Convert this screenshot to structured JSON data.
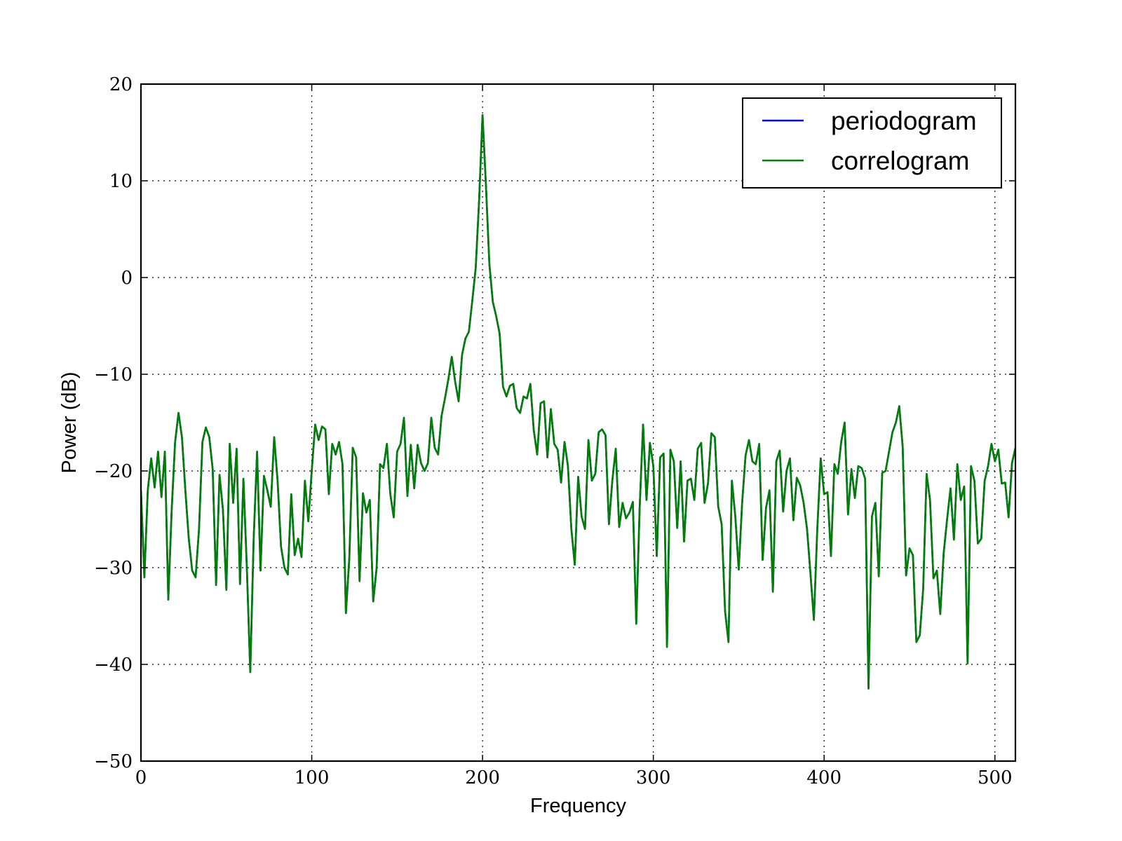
{
  "chart_data": {
    "type": "line",
    "title": "",
    "xlabel": "Frequency",
    "ylabel": "Power (dB)",
    "xlim": [
      0,
      512
    ],
    "ylim": [
      -50,
      20
    ],
    "xticks": [
      0,
      100,
      200,
      300,
      400,
      500
    ],
    "yticks": [
      -50,
      -40,
      -30,
      -20,
      -10,
      0,
      10,
      20
    ],
    "xtick_labels": [
      "0",
      "100",
      "200",
      "300",
      "400",
      "500"
    ],
    "ytick_labels": [
      "−50",
      "−40",
      "−30",
      "−20",
      "−10",
      "0",
      "10",
      "20"
    ],
    "grid": true,
    "legend": {
      "placement": "top-right"
    },
    "series": [
      {
        "name": "periodogram",
        "color": "#0000ff",
        "x": [
          0,
          2,
          4,
          6,
          8,
          10,
          12,
          14,
          16,
          18,
          20,
          22,
          24,
          26,
          28,
          30,
          32,
          34,
          36,
          38,
          40,
          42,
          44,
          46,
          48,
          50,
          52,
          54,
          56,
          58,
          60,
          62,
          64,
          66,
          68,
          70,
          72,
          74,
          76,
          78,
          80,
          82,
          84,
          86,
          88,
          90,
          92,
          94,
          96,
          98,
          100,
          102,
          104,
          106,
          108,
          110,
          112,
          114,
          116,
          118,
          120,
          122,
          124,
          126,
          128,
          130,
          132,
          134,
          136,
          138,
          140,
          142,
          144,
          146,
          148,
          150,
          152,
          154,
          156,
          158,
          160,
          162,
          164,
          166,
          168,
          170,
          172,
          174,
          176,
          178,
          180,
          182,
          184,
          186,
          188,
          190,
          192,
          194,
          196,
          198,
          200,
          202,
          204,
          206,
          208,
          210,
          212,
          214,
          216,
          218,
          220,
          222,
          224,
          226,
          228,
          230,
          232,
          234,
          236,
          238,
          240,
          242,
          244,
          246,
          248,
          250,
          252,
          254,
          256,
          258,
          260,
          262,
          264,
          266,
          268,
          270,
          272,
          274,
          276,
          278,
          280,
          282,
          284,
          286,
          288,
          290,
          292,
          294,
          296,
          298,
          300,
          302,
          304,
          306,
          308,
          310,
          312,
          314,
          316,
          318,
          320,
          322,
          324,
          326,
          328,
          330,
          332,
          334,
          336,
          338,
          340,
          342,
          344,
          346,
          348,
          350,
          352,
          354,
          356,
          358,
          360,
          362,
          364,
          366,
          368,
          370,
          372,
          374,
          376,
          378,
          380,
          382,
          384,
          386,
          388,
          390,
          392,
          394,
          396,
          398,
          400,
          402,
          404,
          406,
          408,
          410,
          412,
          414,
          416,
          418,
          420,
          422,
          424,
          426,
          428,
          430,
          432,
          434,
          436,
          438,
          440,
          442,
          444,
          446,
          448,
          450,
          452,
          454,
          456,
          458,
          460,
          462,
          464,
          466,
          468,
          470,
          472,
          474,
          476,
          478,
          480,
          482,
          484,
          486,
          488,
          490,
          492,
          494,
          496,
          498,
          500,
          502,
          504,
          506,
          508,
          510,
          512
        ],
        "y": [
          -22.0,
          -31.0,
          -22.0,
          -18.7,
          -21.7,
          -18.0,
          -22.7,
          -18.0,
          -33.3,
          -24.0,
          -17.0,
          -14.0,
          -16.5,
          -22.0,
          -27.0,
          -30.3,
          -31.0,
          -26.0,
          -17.0,
          -15.5,
          -16.5,
          -19.8,
          -31.8,
          -20.4,
          -24.0,
          -32.3,
          -17.2,
          -23.3,
          -17.7,
          -31.7,
          -20.8,
          -30.0,
          -40.8,
          -27.0,
          -18.0,
          -30.3,
          -20.5,
          -22.0,
          -23.7,
          -16.5,
          -21.0,
          -27.8,
          -30.0,
          -30.7,
          -22.4,
          -28.7,
          -27.0,
          -28.9,
          -21.0,
          -25.2,
          -20.0,
          -15.2,
          -16.8,
          -15.4,
          -15.7,
          -22.4,
          -17.2,
          -18.3,
          -17.0,
          -19.3,
          -34.7,
          -29.0,
          -17.6,
          -18.6,
          -31.4,
          -22.3,
          -24.3,
          -23.0,
          -33.5,
          -30.0,
          -19.3,
          -19.7,
          -17.2,
          -22.4,
          -24.8,
          -18.0,
          -17.2,
          -14.5,
          -22.6,
          -17.3,
          -21.8,
          -17.3,
          -19.2,
          -20.0,
          -19.2,
          -14.5,
          -17.6,
          -18.3,
          -14.3,
          -12.5,
          -10.5,
          -8.2,
          -10.8,
          -12.8,
          -8.0,
          -6.3,
          -5.6,
          -2.4,
          1.0,
          8.0,
          16.8,
          9.5,
          1.4,
          -2.5,
          -4.0,
          -5.8,
          -11.3,
          -12.3,
          -11.2,
          -11.0,
          -13.5,
          -14.0,
          -12.3,
          -12.5,
          -11.0,
          -15.8,
          -18.3,
          -13.0,
          -12.8,
          -18.6,
          -13.6,
          -17.2,
          -17.8,
          -21.2,
          -17.0,
          -19.5,
          -26.0,
          -29.7,
          -20.6,
          -24.7,
          -26.0,
          -16.8,
          -21.0,
          -20.3,
          -16.0,
          -15.7,
          -16.3,
          -25.5,
          -21.0,
          -17.7,
          -25.8,
          -23.3,
          -24.9,
          -24.3,
          -23.2,
          -35.8,
          -23.8,
          -15.2,
          -23.0,
          -17.1,
          -19.5,
          -28.8,
          -18.6,
          -18.2,
          -38.2,
          -17.8,
          -19.0,
          -25.9,
          -19.0,
          -27.3,
          -21.0,
          -20.8,
          -23.0,
          -17.7,
          -17.1,
          -23.3,
          -21.3,
          -16.1,
          -16.5,
          -23.7,
          -25.5,
          -34.5,
          -37.7,
          -21.0,
          -24.7,
          -30.2,
          -23.3,
          -18.4,
          -16.8,
          -19.0,
          -19.3,
          -17.2,
          -29.2,
          -23.8,
          -22.0,
          -32.5,
          -19.0,
          -17.9,
          -24.2,
          -20.0,
          -18.7,
          -25.1,
          -20.7,
          -21.5,
          -23.3,
          -26.0,
          -30.6,
          -35.4,
          -26.0,
          -18.7,
          -22.4,
          -22.2,
          -28.8,
          -19.3,
          -20.3,
          -17.0,
          -15.0,
          -24.5,
          -19.8,
          -22.8,
          -19.5,
          -19.7,
          -20.8,
          -42.5,
          -24.7,
          -23.3,
          -30.9,
          -20.2,
          -20.0,
          -18.0,
          -16.0,
          -15.0,
          -13.3,
          -17.5,
          -30.8,
          -28.0,
          -28.7,
          -37.7,
          -37.0,
          -32.2,
          -20.3,
          -23.0,
          -31.1,
          -30.3,
          -34.8,
          -28.5,
          -25.0,
          -21.8,
          -27.1,
          -19.3,
          -23.0,
          -21.6,
          -39.9,
          -19.5,
          -21.0,
          -27.5,
          -27.0,
          -21.0,
          -19.5,
          -17.2,
          -19.0,
          -17.8,
          -21.3,
          -21.2,
          -24.8,
          -19.2,
          -17.6
        ]
      },
      {
        "name": "correlogram",
        "color": "#007f00",
        "x": [
          0,
          2,
          4,
          6,
          8,
          10,
          12,
          14,
          16,
          18,
          20,
          22,
          24,
          26,
          28,
          30,
          32,
          34,
          36,
          38,
          40,
          42,
          44,
          46,
          48,
          50,
          52,
          54,
          56,
          58,
          60,
          62,
          64,
          66,
          68,
          70,
          72,
          74,
          76,
          78,
          80,
          82,
          84,
          86,
          88,
          90,
          92,
          94,
          96,
          98,
          100,
          102,
          104,
          106,
          108,
          110,
          112,
          114,
          116,
          118,
          120,
          122,
          124,
          126,
          128,
          130,
          132,
          134,
          136,
          138,
          140,
          142,
          144,
          146,
          148,
          150,
          152,
          154,
          156,
          158,
          160,
          162,
          164,
          166,
          168,
          170,
          172,
          174,
          176,
          178,
          180,
          182,
          184,
          186,
          188,
          190,
          192,
          194,
          196,
          198,
          200,
          202,
          204,
          206,
          208,
          210,
          212,
          214,
          216,
          218,
          220,
          222,
          224,
          226,
          228,
          230,
          232,
          234,
          236,
          238,
          240,
          242,
          244,
          246,
          248,
          250,
          252,
          254,
          256,
          258,
          260,
          262,
          264,
          266,
          268,
          270,
          272,
          274,
          276,
          278,
          280,
          282,
          284,
          286,
          288,
          290,
          292,
          294,
          296,
          298,
          300,
          302,
          304,
          306,
          308,
          310,
          312,
          314,
          316,
          318,
          320,
          322,
          324,
          326,
          328,
          330,
          332,
          334,
          336,
          338,
          340,
          342,
          344,
          346,
          348,
          350,
          352,
          354,
          356,
          358,
          360,
          362,
          364,
          366,
          368,
          370,
          372,
          374,
          376,
          378,
          380,
          382,
          384,
          386,
          388,
          390,
          392,
          394,
          396,
          398,
          400,
          402,
          404,
          406,
          408,
          410,
          412,
          414,
          416,
          418,
          420,
          422,
          424,
          426,
          428,
          430,
          432,
          434,
          436,
          438,
          440,
          442,
          444,
          446,
          448,
          450,
          452,
          454,
          456,
          458,
          460,
          462,
          464,
          466,
          468,
          470,
          472,
          474,
          476,
          478,
          480,
          482,
          484,
          486,
          488,
          490,
          492,
          494,
          496,
          498,
          500,
          502,
          504,
          506,
          508,
          510,
          512
        ],
        "y": [
          -22.0,
          -31.0,
          -22.0,
          -18.7,
          -21.7,
          -18.0,
          -22.7,
          -18.0,
          -33.3,
          -24.0,
          -17.0,
          -14.0,
          -16.5,
          -22.0,
          -27.0,
          -30.3,
          -31.0,
          -26.0,
          -17.0,
          -15.5,
          -16.5,
          -19.8,
          -31.8,
          -20.4,
          -24.0,
          -32.3,
          -17.2,
          -23.3,
          -17.7,
          -31.7,
          -20.8,
          -30.0,
          -40.8,
          -27.0,
          -18.0,
          -30.3,
          -20.5,
          -22.0,
          -23.7,
          -16.5,
          -21.0,
          -27.8,
          -30.0,
          -30.7,
          -22.4,
          -28.7,
          -27.0,
          -28.9,
          -21.0,
          -25.2,
          -20.0,
          -15.2,
          -16.8,
          -15.4,
          -15.7,
          -22.4,
          -17.2,
          -18.3,
          -17.0,
          -19.3,
          -34.7,
          -29.0,
          -17.6,
          -18.6,
          -31.4,
          -22.3,
          -24.3,
          -23.0,
          -33.5,
          -30.0,
          -19.3,
          -19.7,
          -17.2,
          -22.4,
          -24.8,
          -18.0,
          -17.2,
          -14.5,
          -22.6,
          -17.3,
          -21.8,
          -17.3,
          -19.2,
          -20.0,
          -19.2,
          -14.5,
          -17.6,
          -18.3,
          -14.3,
          -12.5,
          -10.5,
          -8.2,
          -10.8,
          -12.8,
          -8.0,
          -6.3,
          -5.6,
          -2.4,
          1.0,
          8.0,
          16.8,
          9.5,
          1.4,
          -2.5,
          -4.0,
          -5.8,
          -11.3,
          -12.3,
          -11.2,
          -11.0,
          -13.5,
          -14.0,
          -12.3,
          -12.5,
          -11.0,
          -15.8,
          -18.3,
          -13.0,
          -12.8,
          -18.6,
          -13.6,
          -17.2,
          -17.8,
          -21.2,
          -17.0,
          -19.5,
          -26.0,
          -29.7,
          -20.6,
          -24.7,
          -26.0,
          -16.8,
          -21.0,
          -20.3,
          -16.0,
          -15.7,
          -16.3,
          -25.5,
          -21.0,
          -17.7,
          -25.8,
          -23.3,
          -24.9,
          -24.3,
          -23.2,
          -35.8,
          -23.8,
          -15.2,
          -23.0,
          -17.1,
          -19.5,
          -28.8,
          -18.6,
          -18.2,
          -38.2,
          -17.8,
          -19.0,
          -25.9,
          -19.0,
          -27.3,
          -21.0,
          -20.8,
          -23.0,
          -17.7,
          -17.1,
          -23.3,
          -21.3,
          -16.1,
          -16.5,
          -23.7,
          -25.5,
          -34.5,
          -37.7,
          -21.0,
          -24.7,
          -30.2,
          -23.3,
          -18.4,
          -16.8,
          -19.0,
          -19.3,
          -17.2,
          -29.2,
          -23.8,
          -22.0,
          -32.5,
          -19.0,
          -17.9,
          -24.2,
          -20.0,
          -18.7,
          -25.1,
          -20.7,
          -21.5,
          -23.3,
          -26.0,
          -30.6,
          -35.4,
          -26.0,
          -18.7,
          -22.4,
          -22.2,
          -28.8,
          -19.3,
          -20.3,
          -17.0,
          -15.0,
          -24.5,
          -19.8,
          -22.8,
          -19.5,
          -19.7,
          -20.8,
          -42.5,
          -24.7,
          -23.3,
          -30.9,
          -20.2,
          -20.0,
          -18.0,
          -16.0,
          -15.0,
          -13.3,
          -17.5,
          -30.8,
          -28.0,
          -28.7,
          -37.7,
          -37.0,
          -32.2,
          -20.3,
          -23.0,
          -31.1,
          -30.3,
          -34.8,
          -28.5,
          -25.0,
          -21.8,
          -27.1,
          -19.3,
          -23.0,
          -21.6,
          -39.9,
          -19.5,
          -21.0,
          -27.5,
          -27.0,
          -21.0,
          -19.5,
          -17.2,
          -19.0,
          -17.8,
          -21.3,
          -21.2,
          -24.8,
          -19.2,
          -17.6
        ]
      }
    ]
  }
}
